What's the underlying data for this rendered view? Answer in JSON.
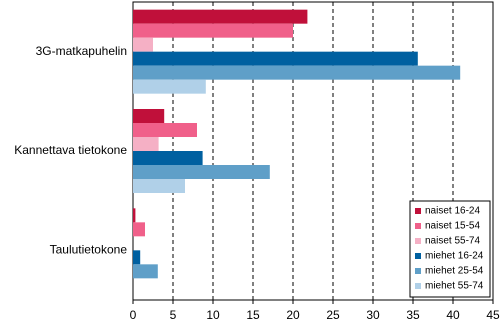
{
  "chart_data": {
    "type": "bar",
    "orientation": "horizontal",
    "categories": [
      "3G-matkapuhelin",
      "Kannettava tietokone",
      "Taulutietokone"
    ],
    "series": [
      {
        "name": "naiset 16-24",
        "color": "#c0103a",
        "values": [
          21.8,
          3.9,
          0.3
        ]
      },
      {
        "name": "naiset 15-54",
        "color": "#f0608a",
        "values": [
          20.0,
          8.0,
          1.5
        ]
      },
      {
        "name": "naiset 55-74",
        "color": "#f5b0c5",
        "values": [
          2.5,
          3.2,
          0
        ]
      },
      {
        "name": "miehet 16-24",
        "color": "#0060a0",
        "values": [
          35.6,
          8.7,
          0.9
        ]
      },
      {
        "name": "miehet 25-54",
        "color": "#5f9fc8",
        "values": [
          40.9,
          17.1,
          3.1
        ]
      },
      {
        "name": "miehet 55-74",
        "color": "#b0d0e8",
        "values": [
          9.1,
          6.5,
          0
        ]
      }
    ],
    "xlim": [
      0,
      45
    ],
    "xticks": [
      0,
      5,
      10,
      15,
      20,
      25,
      30,
      35,
      40,
      45
    ],
    "grid": true,
    "legend": "lower right"
  }
}
